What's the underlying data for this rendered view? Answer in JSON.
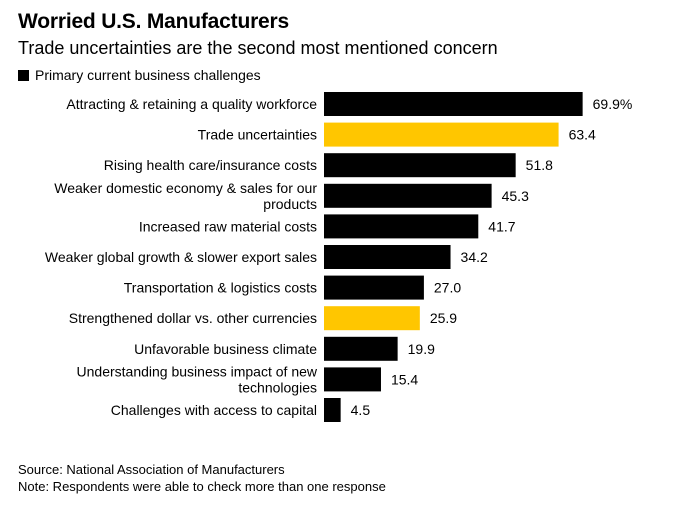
{
  "header": {
    "title": "Worried U.S. Manufacturers",
    "subtitle": "Trade uncertainties are the second most mentioned concern"
  },
  "legend": {
    "label": "Primary current business challenges",
    "color": "#000000"
  },
  "chart_data": {
    "type": "bar",
    "orientation": "horizontal",
    "title": "Worried U.S. Manufacturers",
    "subtitle": "Trade uncertainties are the second most mentioned concern",
    "xlabel": "",
    "ylabel": "",
    "xlim": [
      0,
      70
    ],
    "grid": false,
    "legend": [
      "Primary current business challenges"
    ],
    "legend_position": "top-left",
    "categories": [
      "Attracting & retaining a quality workforce",
      "Trade uncertainties",
      "Rising health care/insurance costs",
      "Weaker domestic economy & sales for our products",
      "Increased raw material costs",
      "Weaker global growth & slower export sales",
      "Transportation & logistics costs",
      "Strengthened dollar vs. other currencies",
      "Unfavorable business climate",
      "Understanding business impact of new technologies",
      "Challenges with access to capital"
    ],
    "category_lines": [
      [
        "Attracting & retaining a quality workforce"
      ],
      [
        "Trade uncertainties"
      ],
      [
        "Rising health care/insurance costs"
      ],
      [
        "Weaker domestic economy & sales for our",
        "products"
      ],
      [
        "Increased raw material costs"
      ],
      [
        "Weaker global growth & slower export sales"
      ],
      [
        "Transportation & logistics costs"
      ],
      [
        "Strengthened dollar vs. other currencies"
      ],
      [
        "Unfavorable business climate"
      ],
      [
        "Understanding business impact of new",
        "technologies"
      ],
      [
        "Challenges with access to capital"
      ]
    ],
    "values": [
      69.9,
      63.4,
      51.8,
      45.3,
      41.7,
      34.2,
      27.0,
      25.9,
      19.9,
      15.4,
      4.5
    ],
    "value_labels": [
      "69.9%",
      "63.4",
      "51.8",
      "45.3",
      "41.7",
      "34.2",
      "27.0",
      "25.9",
      "19.9",
      "15.4",
      "4.5"
    ],
    "highlighted": [
      false,
      true,
      false,
      false,
      false,
      false,
      false,
      true,
      false,
      false,
      false
    ],
    "colors": {
      "default": "#000000",
      "highlight": "#ffc600"
    }
  },
  "footnotes": {
    "source": "Source: National Association of Manufacturers",
    "note": "Note: Respondents were able to check more than one response"
  }
}
